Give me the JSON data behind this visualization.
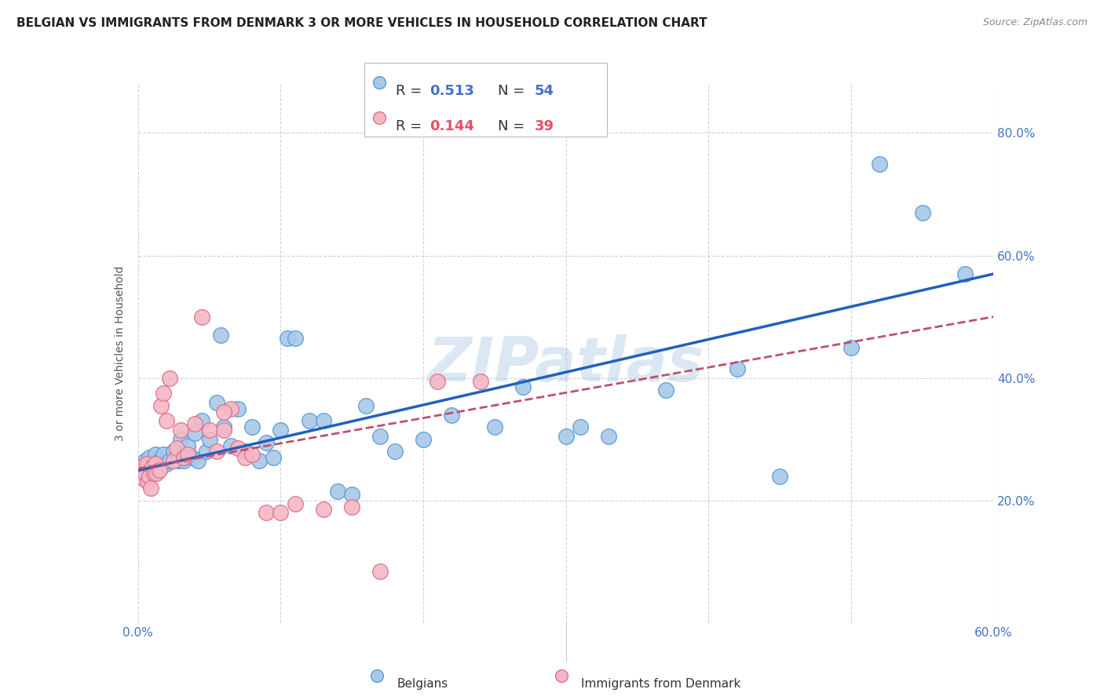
{
  "title": "BELGIAN VS IMMIGRANTS FROM DENMARK 3 OR MORE VEHICLES IN HOUSEHOLD CORRELATION CHART",
  "source": "Source: ZipAtlas.com",
  "ylabel": "3 or more Vehicles in Household",
  "xlim": [
    0.0,
    0.6
  ],
  "ylim": [
    0.0,
    0.88
  ],
  "yticks": [
    0.2,
    0.4,
    0.6,
    0.8
  ],
  "xticks": [
    0.0,
    0.1,
    0.2,
    0.3,
    0.4,
    0.5,
    0.6
  ],
  "blue_r": "0.513",
  "blue_n": "54",
  "pink_r": "0.144",
  "pink_n": "39",
  "watermark": "ZIPatlas",
  "blue_scatter_x": [
    0.005,
    0.008,
    0.01,
    0.012,
    0.015,
    0.016,
    0.018,
    0.02,
    0.022,
    0.025,
    0.028,
    0.03,
    0.032,
    0.035,
    0.038,
    0.04,
    0.042,
    0.045,
    0.048,
    0.05,
    0.055,
    0.058,
    0.06,
    0.065,
    0.07,
    0.075,
    0.08,
    0.085,
    0.09,
    0.095,
    0.1,
    0.105,
    0.11,
    0.12,
    0.13,
    0.14,
    0.15,
    0.16,
    0.17,
    0.18,
    0.2,
    0.22,
    0.25,
    0.27,
    0.3,
    0.31,
    0.33,
    0.37,
    0.42,
    0.45,
    0.5,
    0.52,
    0.55,
    0.58
  ],
  "blue_scatter_y": [
    0.265,
    0.27,
    0.26,
    0.275,
    0.265,
    0.255,
    0.275,
    0.26,
    0.265,
    0.28,
    0.265,
    0.3,
    0.265,
    0.29,
    0.27,
    0.31,
    0.265,
    0.33,
    0.28,
    0.3,
    0.36,
    0.47,
    0.32,
    0.29,
    0.35,
    0.28,
    0.32,
    0.265,
    0.295,
    0.27,
    0.315,
    0.465,
    0.465,
    0.33,
    0.33,
    0.215,
    0.21,
    0.355,
    0.305,
    0.28,
    0.3,
    0.34,
    0.32,
    0.385,
    0.305,
    0.32,
    0.305,
    0.38,
    0.415,
    0.24,
    0.45,
    0.75,
    0.67,
    0.57
  ],
  "pink_scatter_x": [
    0.003,
    0.004,
    0.005,
    0.006,
    0.007,
    0.008,
    0.009,
    0.01,
    0.011,
    0.012,
    0.013,
    0.015,
    0.016,
    0.018,
    0.02,
    0.022,
    0.025,
    0.027,
    0.03,
    0.032,
    0.035,
    0.04,
    0.045,
    0.05,
    0.055,
    0.06,
    0.065,
    0.07,
    0.075,
    0.08,
    0.09,
    0.1,
    0.11,
    0.13,
    0.15,
    0.17,
    0.21,
    0.24,
    0.06
  ],
  "pink_scatter_y": [
    0.255,
    0.235,
    0.245,
    0.26,
    0.23,
    0.24,
    0.22,
    0.255,
    0.245,
    0.26,
    0.245,
    0.25,
    0.355,
    0.375,
    0.33,
    0.4,
    0.265,
    0.285,
    0.315,
    0.27,
    0.275,
    0.325,
    0.5,
    0.315,
    0.28,
    0.315,
    0.35,
    0.285,
    0.27,
    0.275,
    0.18,
    0.18,
    0.195,
    0.185,
    0.19,
    0.085,
    0.395,
    0.395,
    0.345
  ],
  "blue_line_y0": 0.249,
  "blue_line_y1": 0.57,
  "pink_line_y0": 0.252,
  "pink_line_y1": 0.5,
  "blue_dot_color": "#a8c8e8",
  "blue_edge_color": "#5b9bd5",
  "pink_dot_color": "#f4b8c4",
  "pink_edge_color": "#e07090",
  "line_blue_color": "#2060c0",
  "line_pink_color": "#c05070",
  "background_color": "#ffffff",
  "grid_color": "#d0d0e0",
  "tick_color": "#4472c4",
  "title_fontsize": 11,
  "source_fontsize": 9,
  "ylabel_fontsize": 10,
  "tick_fontsize": 11,
  "legend_fontsize": 13
}
